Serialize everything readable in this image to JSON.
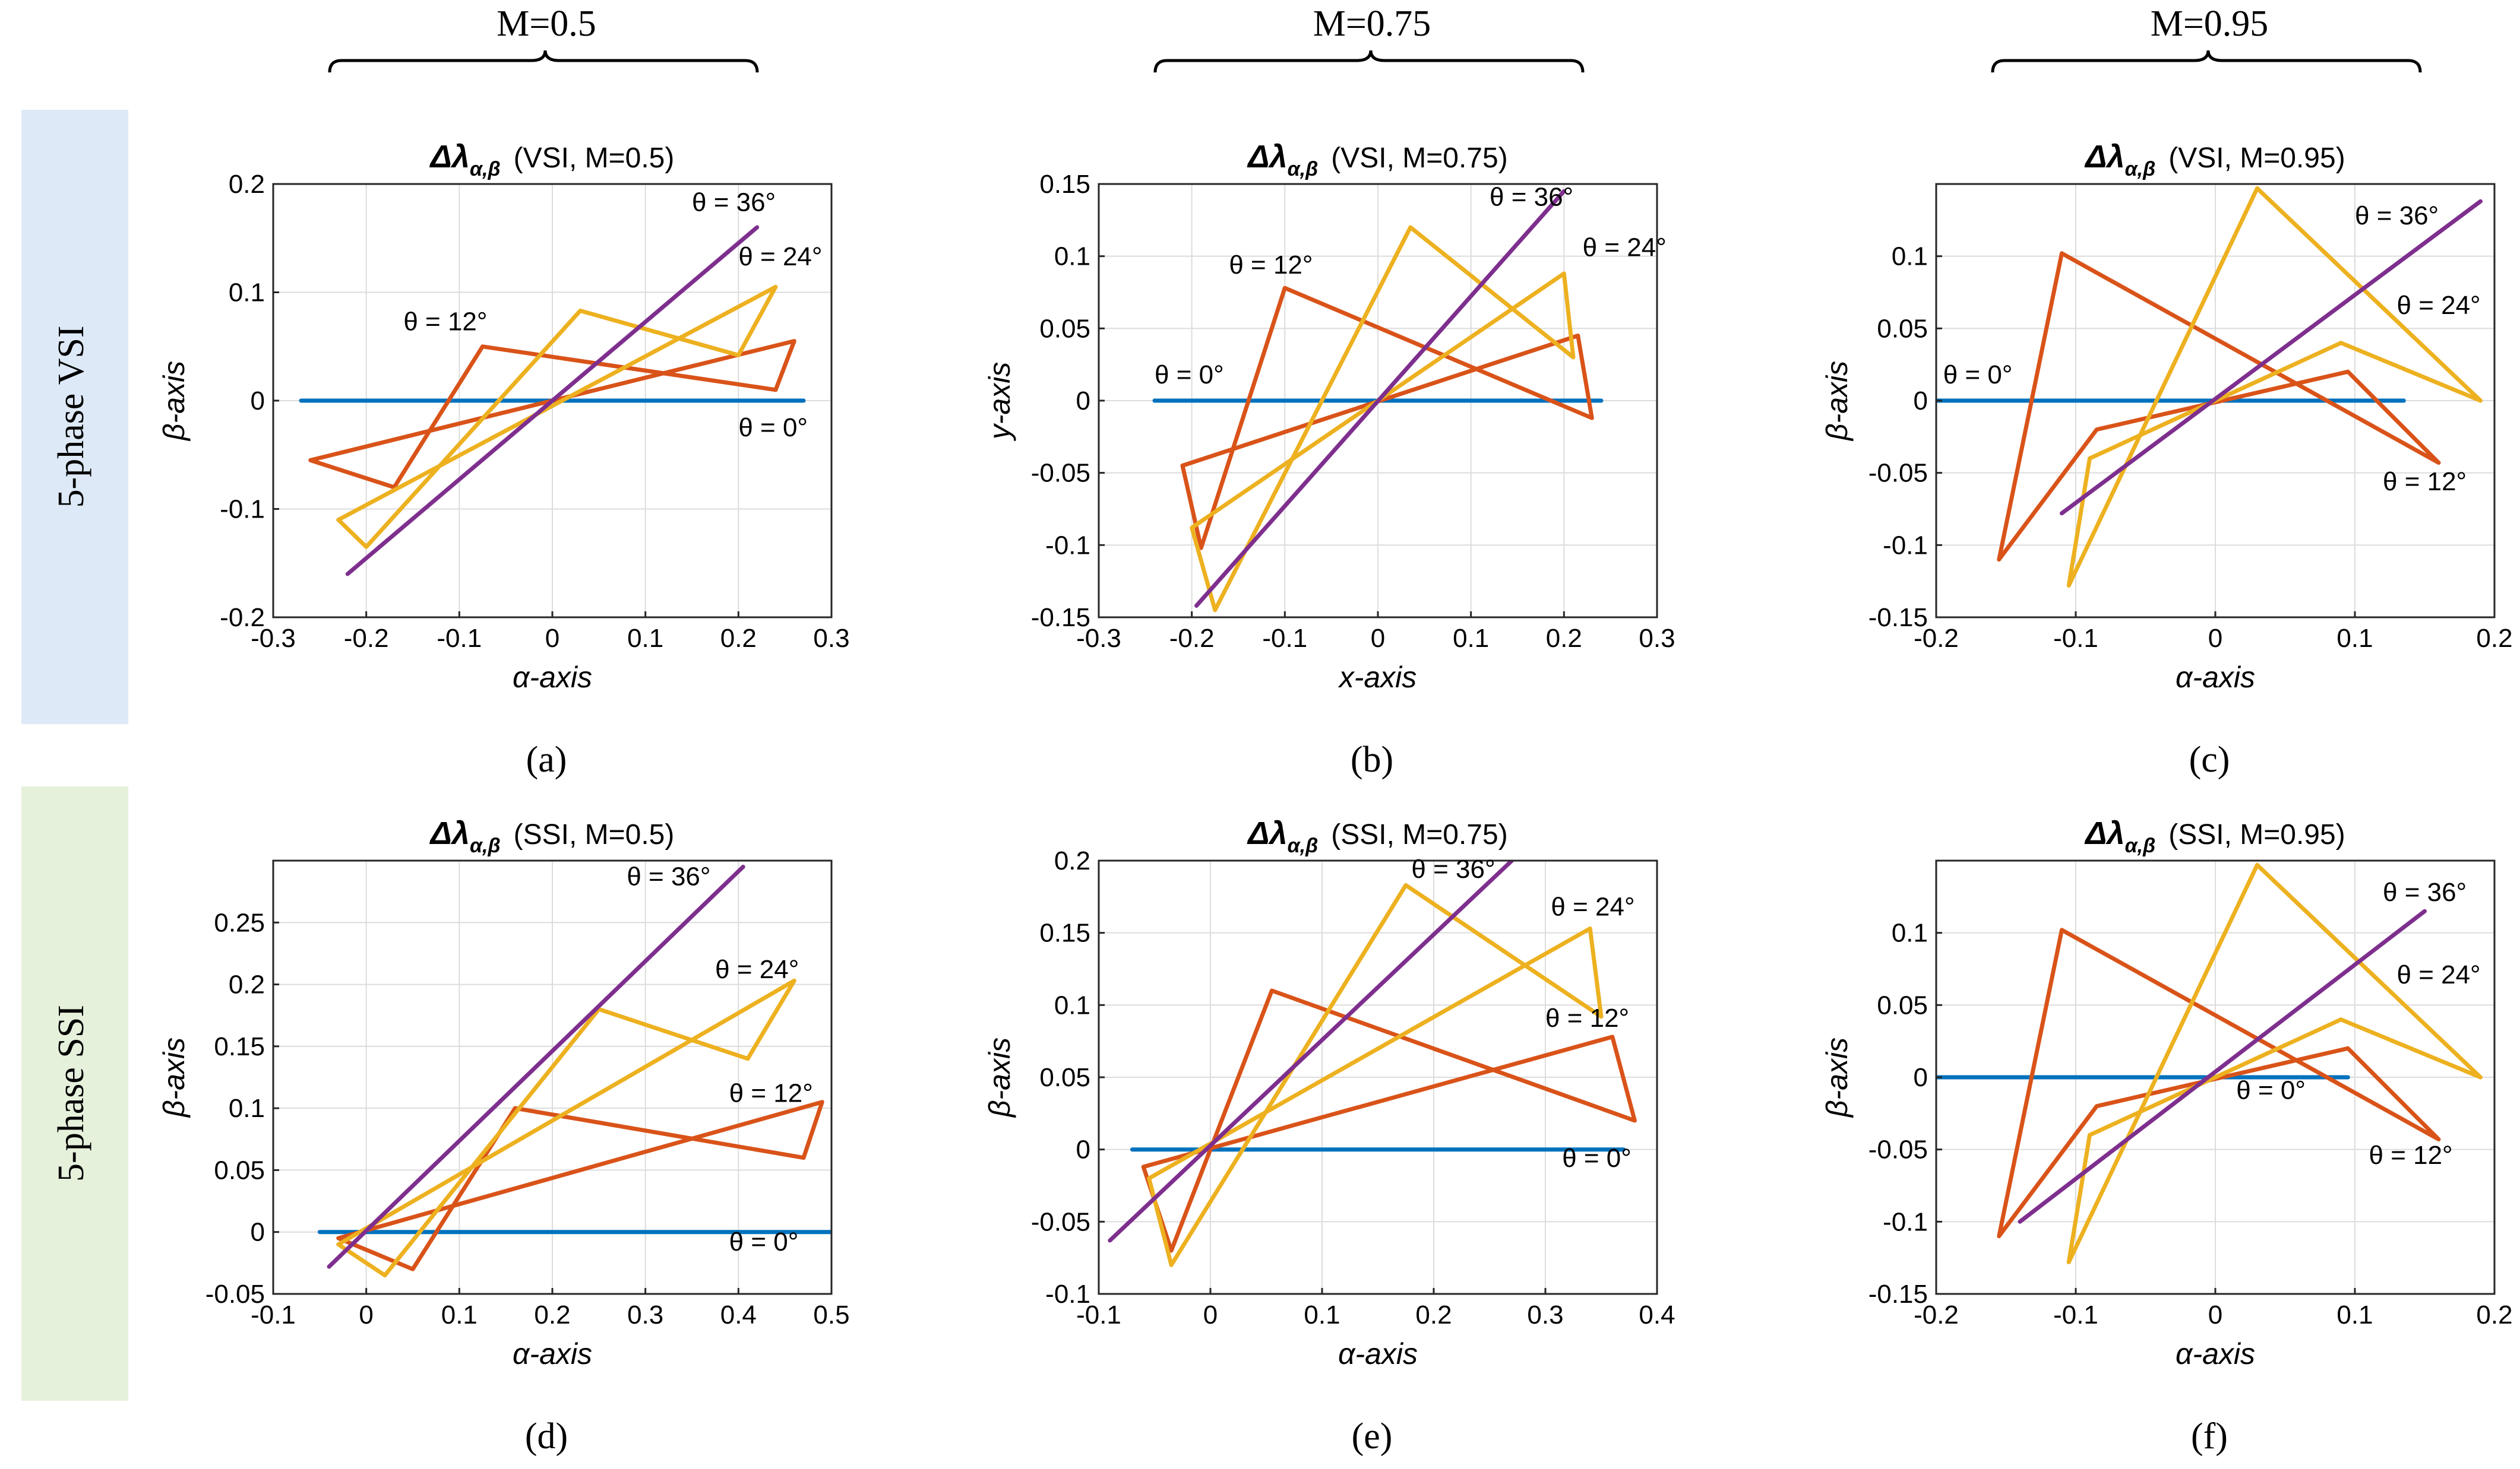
{
  "column_labels": [
    "M=0.5",
    "M=0.75",
    "M=0.95"
  ],
  "row_labels": [
    "5-phase VSI",
    "5-phase SSI"
  ],
  "colors": {
    "theta0": "#0072BD",
    "theta12": "#D95319",
    "theta24": "#EDB120",
    "theta36": "#7E2F8E",
    "row_vsi_band": "#dde9f6",
    "row_ssi_band": "#e6f1dc"
  },
  "chart_data": [
    {
      "type": "line",
      "panel": "(a)",
      "title_symbol": "Δλ",
      "title_sub": "α,β",
      "title_text": "(VSI, M=0.5)",
      "xlabel": "α-axis",
      "ylabel": "β-axis",
      "xlim": [
        -0.3,
        0.3
      ],
      "ylim": [
        -0.2,
        0.2
      ],
      "xticks": [
        -0.3,
        -0.2,
        -0.1,
        0,
        0.1,
        0.2,
        0.3
      ],
      "xtick_labels": [
        "-0.3",
        "-0.2",
        "-0.1",
        "0",
        "0.1",
        "0.2",
        "0.3"
      ],
      "yticks": [
        -0.2,
        -0.1,
        0,
        0.1,
        0.2
      ],
      "ytick_labels": [
        "-0.2",
        "-0.1",
        "0",
        "0.1",
        "0.2"
      ],
      "series": [
        {
          "name": "θ = 0°",
          "color_key": "theta0",
          "x": [
            -0.27,
            0.27
          ],
          "y": [
            0,
            0
          ]
        },
        {
          "name": "θ = 12°",
          "color_key": "theta12",
          "x": [
            -0.26,
            -0.17,
            -0.075,
            0.24,
            0.26,
            -0.26
          ],
          "y": [
            -0.055,
            -0.08,
            0.05,
            0.01,
            0.055,
            -0.055
          ]
        },
        {
          "name": "θ = 24°",
          "color_key": "theta24",
          "x": [
            -0.23,
            -0.2,
            0.03,
            0.2,
            0.24,
            -0.23
          ],
          "y": [
            -0.11,
            -0.135,
            0.083,
            0.042,
            0.105,
            -0.11
          ]
        },
        {
          "name": "θ = 36°",
          "color_key": "theta36",
          "x": [
            -0.22,
            0.22
          ],
          "y": [
            -0.16,
            0.16
          ]
        }
      ],
      "annotations": [
        {
          "text": "θ = 36°",
          "x": 0.15,
          "y": 0.175
        },
        {
          "text": "θ = 24°",
          "x": 0.2,
          "y": 0.125
        },
        {
          "text": "θ = 12°",
          "x": -0.16,
          "y": 0.065
        },
        {
          "text": "θ = 0°",
          "x": 0.2,
          "y": -0.033
        }
      ]
    },
    {
      "type": "line",
      "panel": "(b)",
      "title_symbol": "Δλ",
      "title_sub": "α,β",
      "title_text": "(VSI, M=0.75)",
      "xlabel": "x-axis",
      "ylabel": "y-axis",
      "xlim": [
        -0.3,
        0.3
      ],
      "ylim": [
        -0.15,
        0.15
      ],
      "xticks": [
        -0.3,
        -0.2,
        -0.1,
        0,
        0.1,
        0.2,
        0.3
      ],
      "xtick_labels": [
        "-0.3",
        "-0.2",
        "-0.1",
        "0",
        "0.1",
        "0.2",
        "0.3"
      ],
      "yticks": [
        -0.15,
        -0.1,
        -0.05,
        0,
        0.05,
        0.1,
        0.15
      ],
      "ytick_labels": [
        "-0.15",
        "-0.1",
        "-0.05",
        "0",
        "0.05",
        "0.1",
        "0.15"
      ],
      "series": [
        {
          "name": "θ = 0°",
          "color_key": "theta0",
          "x": [
            -0.24,
            0.24
          ],
          "y": [
            0,
            0
          ]
        },
        {
          "name": "θ = 12°",
          "color_key": "theta12",
          "x": [
            -0.21,
            -0.19,
            -0.1,
            0.23,
            0.215,
            -0.21
          ],
          "y": [
            -0.045,
            -0.102,
            0.078,
            -0.012,
            0.045,
            -0.045
          ]
        },
        {
          "name": "θ = 24°",
          "color_key": "theta24",
          "x": [
            -0.2,
            -0.175,
            0.035,
            0.21,
            0.2,
            -0.2
          ],
          "y": [
            -0.088,
            -0.145,
            0.12,
            0.03,
            0.088,
            -0.088
          ]
        },
        {
          "name": "θ = 36°",
          "color_key": "theta36",
          "x": [
            -0.195,
            0.2
          ],
          "y": [
            -0.142,
            0.145
          ]
        }
      ],
      "annotations": [
        {
          "text": "θ = 36°",
          "x": 0.12,
          "y": 0.135
        },
        {
          "text": "θ = 24°",
          "x": 0.22,
          "y": 0.1
        },
        {
          "text": "θ = 12°",
          "x": -0.16,
          "y": 0.088
        },
        {
          "text": "θ = 0°",
          "x": -0.24,
          "y": 0.012
        }
      ]
    },
    {
      "type": "line",
      "panel": "(c)",
      "title_symbol": "Δλ",
      "title_sub": "α,β",
      "title_text": "(VSI, M=0.95)",
      "xlabel": "α-axis",
      "ylabel": "β-axis",
      "xlim": [
        -0.2,
        0.2
      ],
      "ylim": [
        -0.15,
        0.15
      ],
      "xticks": [
        -0.2,
        -0.1,
        0,
        0.1,
        0.2
      ],
      "xtick_labels": [
        "-0.2",
        "-0.1",
        "0",
        "0.1",
        "0.2"
      ],
      "yticks": [
        -0.15,
        -0.1,
        -0.05,
        0,
        0.05,
        0.1
      ],
      "ytick_labels": [
        "-0.15",
        "-0.1",
        "-0.05",
        "0",
        "0.05",
        "0.1"
      ],
      "series": [
        {
          "name": "θ = 0°",
          "color_key": "theta0",
          "x": [
            -0.2,
            0.135
          ],
          "y": [
            0,
            0
          ]
        },
        {
          "name": "θ = 12°",
          "color_key": "theta12",
          "x": [
            -0.155,
            -0.11,
            0.16,
            0.095,
            -0.085,
            -0.155
          ],
          "y": [
            -0.11,
            0.102,
            -0.043,
            0.02,
            -0.02,
            -0.11
          ]
        },
        {
          "name": "θ = 24°",
          "color_key": "theta24",
          "x": [
            -0.105,
            0.03,
            0.19,
            0.09,
            -0.09,
            -0.105
          ],
          "y": [
            -0.128,
            0.147,
            0,
            0.04,
            -0.04,
            -0.128
          ]
        },
        {
          "name": "θ = 36°",
          "color_key": "theta36",
          "x": [
            -0.11,
            0.19
          ],
          "y": [
            -0.078,
            0.138
          ]
        }
      ],
      "annotations": [
        {
          "text": "θ = 36°",
          "x": 0.1,
          "y": 0.122
        },
        {
          "text": "θ = 24°",
          "x": 0.13,
          "y": 0.06
        },
        {
          "text": "θ = 12°",
          "x": 0.12,
          "y": -0.062
        },
        {
          "text": "θ = 0°",
          "x": -0.195,
          "y": 0.012
        }
      ]
    },
    {
      "type": "line",
      "panel": "(d)",
      "title_symbol": "Δλ",
      "title_sub": "α,β",
      "title_text": "(SSI, M=0.5)",
      "xlabel": "α-axis",
      "ylabel": "β-axis",
      "xlim": [
        -0.1,
        0.5
      ],
      "ylim": [
        -0.05,
        0.3
      ],
      "xticks": [
        -0.1,
        0,
        0.1,
        0.2,
        0.3,
        0.4,
        0.5
      ],
      "xtick_labels": [
        "-0.1",
        "0",
        "0.1",
        "0.2",
        "0.3",
        "0.4",
        "0.5"
      ],
      "yticks": [
        -0.05,
        0,
        0.05,
        0.1,
        0.15,
        0.2,
        0.25
      ],
      "ytick_labels": [
        "-0.05",
        "0",
        "0.05",
        "0.1",
        "0.15",
        "0.2",
        "0.25"
      ],
      "series": [
        {
          "name": "θ = 0°",
          "color_key": "theta0",
          "x": [
            -0.05,
            0.5
          ],
          "y": [
            0,
            0
          ]
        },
        {
          "name": "θ = 12°",
          "color_key": "theta12",
          "x": [
            -0.03,
            0.05,
            0.16,
            0.47,
            0.49,
            -0.03
          ],
          "y": [
            -0.005,
            -0.03,
            0.1,
            0.06,
            0.105,
            -0.005
          ]
        },
        {
          "name": "θ = 24°",
          "color_key": "theta24",
          "x": [
            -0.03,
            0.02,
            0.25,
            0.41,
            0.46,
            -0.03
          ],
          "y": [
            -0.01,
            -0.035,
            0.18,
            0.14,
            0.203,
            -0.01
          ]
        },
        {
          "name": "θ = 36°",
          "color_key": "theta36",
          "x": [
            -0.04,
            0.405
          ],
          "y": [
            -0.028,
            0.295
          ]
        }
      ],
      "annotations": [
        {
          "text": "θ = 36°",
          "x": 0.28,
          "y": 0.28
        },
        {
          "text": "θ = 24°",
          "x": 0.375,
          "y": 0.205
        },
        {
          "text": "θ = 12°",
          "x": 0.39,
          "y": 0.105
        },
        {
          "text": "θ = 0°",
          "x": 0.39,
          "y": -0.015
        }
      ]
    },
    {
      "type": "line",
      "panel": "(e)",
      "title_symbol": "Δλ",
      "title_sub": "α,β",
      "title_text": "(SSI, M=0.75)",
      "xlabel": "α-axis",
      "ylabel": "β-axis",
      "xlim": [
        -0.1,
        0.4
      ],
      "ylim": [
        -0.1,
        0.2
      ],
      "xticks": [
        -0.1,
        0,
        0.1,
        0.2,
        0.3,
        0.4
      ],
      "xtick_labels": [
        "-0.1",
        "0",
        "0.1",
        "0.2",
        "0.3",
        "0.4"
      ],
      "yticks": [
        -0.1,
        -0.05,
        0,
        0.05,
        0.1,
        0.15,
        0.2
      ],
      "ytick_labels": [
        "-0.1",
        "-0.05",
        "0",
        "0.05",
        "0.1",
        "0.15",
        "0.2"
      ],
      "series": [
        {
          "name": "θ = 0°",
          "color_key": "theta0",
          "x": [
            -0.07,
            0.37
          ],
          "y": [
            0,
            0
          ]
        },
        {
          "name": "θ = 12°",
          "color_key": "theta12",
          "x": [
            -0.06,
            -0.035,
            0.055,
            0.38,
            0.36,
            -0.06
          ],
          "y": [
            -0.012,
            -0.07,
            0.11,
            0.02,
            0.078,
            -0.012
          ]
        },
        {
          "name": "θ = 24°",
          "color_key": "theta24",
          "x": [
            -0.055,
            -0.035,
            0.175,
            0.35,
            0.34,
            -0.055
          ],
          "y": [
            -0.02,
            -0.08,
            0.183,
            0.092,
            0.153,
            -0.02
          ]
        },
        {
          "name": "θ = 36°",
          "color_key": "theta36",
          "x": [
            -0.09,
            0.27
          ],
          "y": [
            -0.063,
            0.2
          ]
        }
      ],
      "annotations": [
        {
          "text": "θ = 36°",
          "x": 0.18,
          "y": 0.188
        },
        {
          "text": "θ = 24°",
          "x": 0.305,
          "y": 0.162
        },
        {
          "text": "θ = 12°",
          "x": 0.3,
          "y": 0.085
        },
        {
          "text": "θ = 0°",
          "x": 0.315,
          "y": -0.012
        }
      ]
    },
    {
      "type": "line",
      "panel": "(f)",
      "title_symbol": "Δλ",
      "title_sub": "α,β",
      "title_text": "(SSI, M=0.95)",
      "xlabel": "α-axis",
      "ylabel": "β-axis",
      "xlim": [
        -0.2,
        0.2
      ],
      "ylim": [
        -0.15,
        0.15
      ],
      "xticks": [
        -0.2,
        -0.1,
        0,
        0.1,
        0.2
      ],
      "xtick_labels": [
        "-0.2",
        "-0.1",
        "0",
        "0.1",
        "0.2"
      ],
      "yticks": [
        -0.15,
        -0.1,
        -0.05,
        0,
        0.05,
        0.1
      ],
      "ytick_labels": [
        "-0.15",
        "-0.1",
        "-0.05",
        "0",
        "0.05",
        "0.1"
      ],
      "series": [
        {
          "name": "θ = 0°",
          "color_key": "theta0",
          "x": [
            -0.2,
            0.095
          ],
          "y": [
            0,
            0
          ]
        },
        {
          "name": "θ = 12°",
          "color_key": "theta12",
          "x": [
            -0.155,
            -0.11,
            0.16,
            0.095,
            -0.085,
            -0.155
          ],
          "y": [
            -0.11,
            0.102,
            -0.043,
            0.02,
            -0.02,
            -0.11
          ]
        },
        {
          "name": "θ = 24°",
          "color_key": "theta24",
          "x": [
            -0.105,
            0.03,
            0.19,
            0.09,
            -0.09,
            -0.105
          ],
          "y": [
            -0.128,
            0.147,
            0,
            0.04,
            -0.04,
            -0.128
          ]
        },
        {
          "name": "θ = 36°",
          "color_key": "theta36",
          "x": [
            -0.14,
            0.15
          ],
          "y": [
            -0.1,
            0.115
          ]
        }
      ],
      "annotations": [
        {
          "text": "θ = 36°",
          "x": 0.12,
          "y": 0.122
        },
        {
          "text": "θ = 24°",
          "x": 0.13,
          "y": 0.065
        },
        {
          "text": "θ = 12°",
          "x": 0.11,
          "y": -0.06
        },
        {
          "text": "θ = 0°",
          "x": 0.015,
          "y": -0.015
        }
      ]
    }
  ]
}
